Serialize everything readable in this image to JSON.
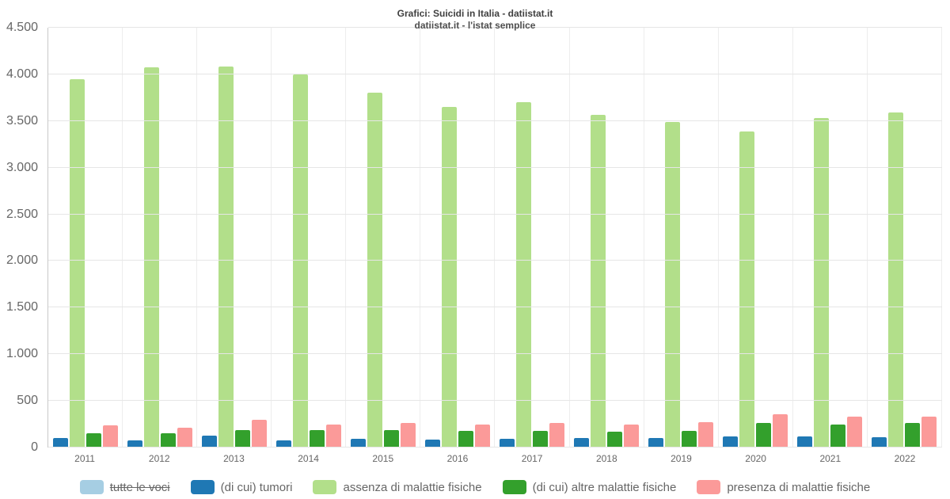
{
  "header": {
    "title": "Grafici: Suicidi in Italia - datiistat.it",
    "subtitle": "datiistat.it - l'istat semplice"
  },
  "chart_data": {
    "type": "bar",
    "title": "Grafici: Suicidi in Italia - datiistat.it",
    "subtitle": "datiistat.it - l'istat semplice",
    "categories": [
      "2011",
      "2012",
      "2013",
      "2014",
      "2015",
      "2016",
      "2017",
      "2018",
      "2019",
      "2020",
      "2021",
      "2022"
    ],
    "series": [
      {
        "name": "tutte le voci",
        "color": "#a6cee3",
        "visible": false,
        "values": null
      },
      {
        "name": "(di cui) tumori",
        "color": "#1f78b4",
        "visible": true,
        "values": [
          100,
          80,
          125,
          80,
          95,
          85,
          95,
          100,
          105,
          115,
          120,
          110
        ]
      },
      {
        "name": "assenza di malattie fisiche",
        "color": "#b2df8a",
        "visible": true,
        "values": [
          3950,
          4075,
          4085,
          4000,
          3805,
          3650,
          3700,
          3570,
          3490,
          3390,
          3530,
          3595
        ]
      },
      {
        "name": "(di cui) altre malattie fisiche",
        "color": "#33a02c",
        "visible": true,
        "values": [
          155,
          150,
          190,
          185,
          185,
          175,
          180,
          170,
          180,
          265,
          245,
          260
        ]
      },
      {
        "name": "presenza di malattie fisiche",
        "color": "#fb9a99",
        "visible": true,
        "values": [
          235,
          215,
          295,
          245,
          265,
          250,
          260,
          250,
          270,
          355,
          335,
          335
        ]
      }
    ],
    "ylim": [
      0,
      4500
    ],
    "ytick_step": 500,
    "ytick_labels": [
      "0",
      "500",
      "1.000",
      "1.500",
      "2.000",
      "2.500",
      "3.000",
      "3.500",
      "4.000",
      "4.500"
    ],
    "grid": true,
    "legend_position": "bottom"
  }
}
